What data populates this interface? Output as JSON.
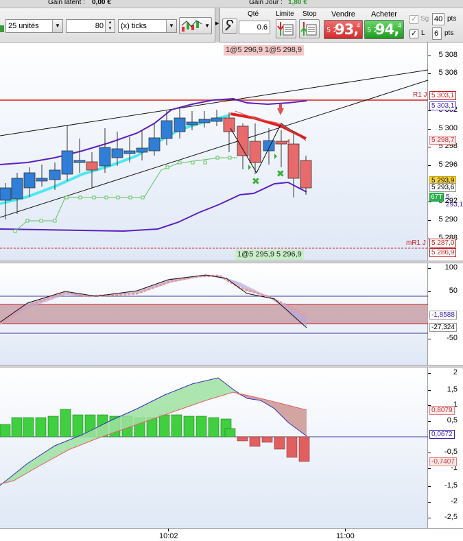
{
  "top_strip": {
    "gain_latent_label": "Gain latent :",
    "gain_latent_value": "0,00 €",
    "gain_jour_label": "Gain Jour :",
    "gain_jour_value": "1,80 €"
  },
  "toolbar": {
    "units_select": "25 unités",
    "interval_value": "80",
    "interval_type": "(x) ticks",
    "qty_label": "Qté",
    "qty_value": "0.6",
    "limit_label": "Limite",
    "stop_label": "Stop",
    "sell_label": "Vendre",
    "sell_prefix": "5 2",
    "sell_big": "93,",
    "sell_sup": "4",
    "buy_label": "Acheter",
    "buy_prefix": "5 2",
    "buy_big": "94,",
    "buy_sup": "4",
    "sg_label": "Sg",
    "sg_pts": "40",
    "pts_label": "pts",
    "l_label": "L",
    "l_pts": "6",
    "pts_label2": "pts"
  },
  "orders": {
    "top_box": "1@5 296,9 1@5 298,9",
    "bottom_box": "1@5 295,9 5 296,9"
  },
  "price_axis": {
    "labels": [
      "5 308",
      "5 306",
      "5 302",
      "5 300",
      "5 298",
      "5 296",
      "5 292",
      "5 290",
      "5 288"
    ],
    "tags": {
      "r1": "R1 J",
      "r1_value": "5 303,1",
      "band_top": "5 303,1",
      "upper_band": "5 298,7",
      "yellow": "5 293,9",
      "current": "5 293,6",
      "green_tag": "67T",
      "green_value": "5 293,1",
      "mr1_label": "mR1 J",
      "mr1_value": "5 287,0",
      "lower": "5 286,9"
    }
  },
  "osc_axis": {
    "labels": [
      "100",
      "50",
      "-50"
    ],
    "tag_1": "-1,8588",
    "tag_2": "-27,324"
  },
  "macd_axis": {
    "labels": [
      "2",
      "1,5",
      "1",
      "0,5",
      "-0,5",
      "-1",
      "-1,5",
      "-2",
      "-2,5"
    ],
    "tag_1": "0,8079",
    "tag_2": "0,0672",
    "tag_3": "-0,7407"
  },
  "time_axis": {
    "labels": [
      "10:02",
      "11:00"
    ]
  },
  "colors": {
    "bull": "#2f7fd8",
    "bear": "#e86a6a",
    "band": "#5a1fc0",
    "ema": "#4de8f0",
    "sar": "#5cc05c",
    "pivot": "#d42020",
    "macd_bar": "#3fcf3f",
    "macd_neg": "#e06060"
  }
}
